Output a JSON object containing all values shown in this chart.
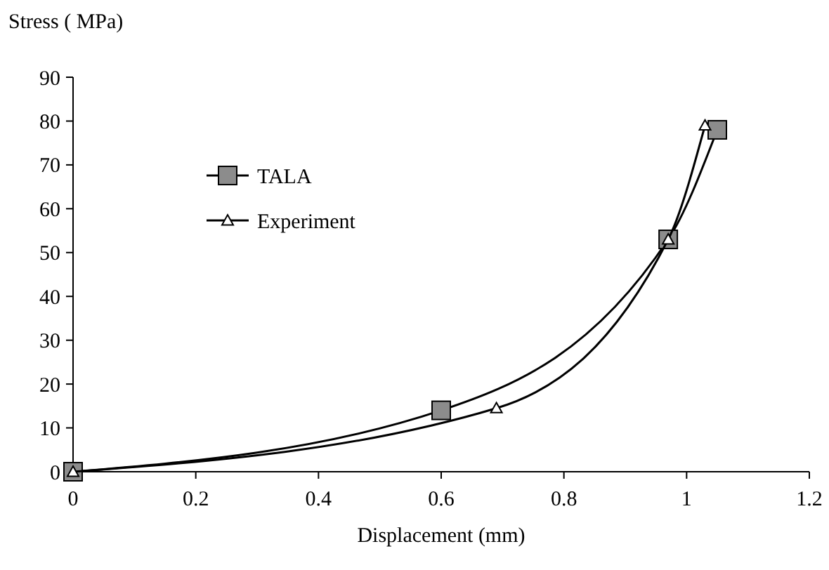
{
  "chart_data": {
    "type": "line",
    "ylabel": "Stress ( MPa)",
    "xlabel": "Displacement (mm)",
    "xlim": [
      0,
      1.2
    ],
    "xticks": [
      0,
      0.2,
      0.4,
      0.6,
      0.8,
      1,
      1.2
    ],
    "ylim": [
      0,
      90
    ],
    "yticks": [
      0,
      10,
      20,
      30,
      40,
      50,
      60,
      70,
      80,
      90
    ],
    "grid": false,
    "legend": "top left",
    "line_style": "solid",
    "series": [
      {
        "name": "TALA",
        "color": "#000000",
        "marker": "square",
        "x": [
          0,
          0.6,
          0.97,
          1.05
        ],
        "values": [
          0,
          14,
          53,
          78
        ]
      },
      {
        "name": "Experiment",
        "color": "#000000",
        "marker": "triangle",
        "x": [
          0,
          0.69,
          0.97,
          1.03
        ],
        "values": [
          0,
          14.5,
          53,
          79
        ]
      }
    ]
  }
}
